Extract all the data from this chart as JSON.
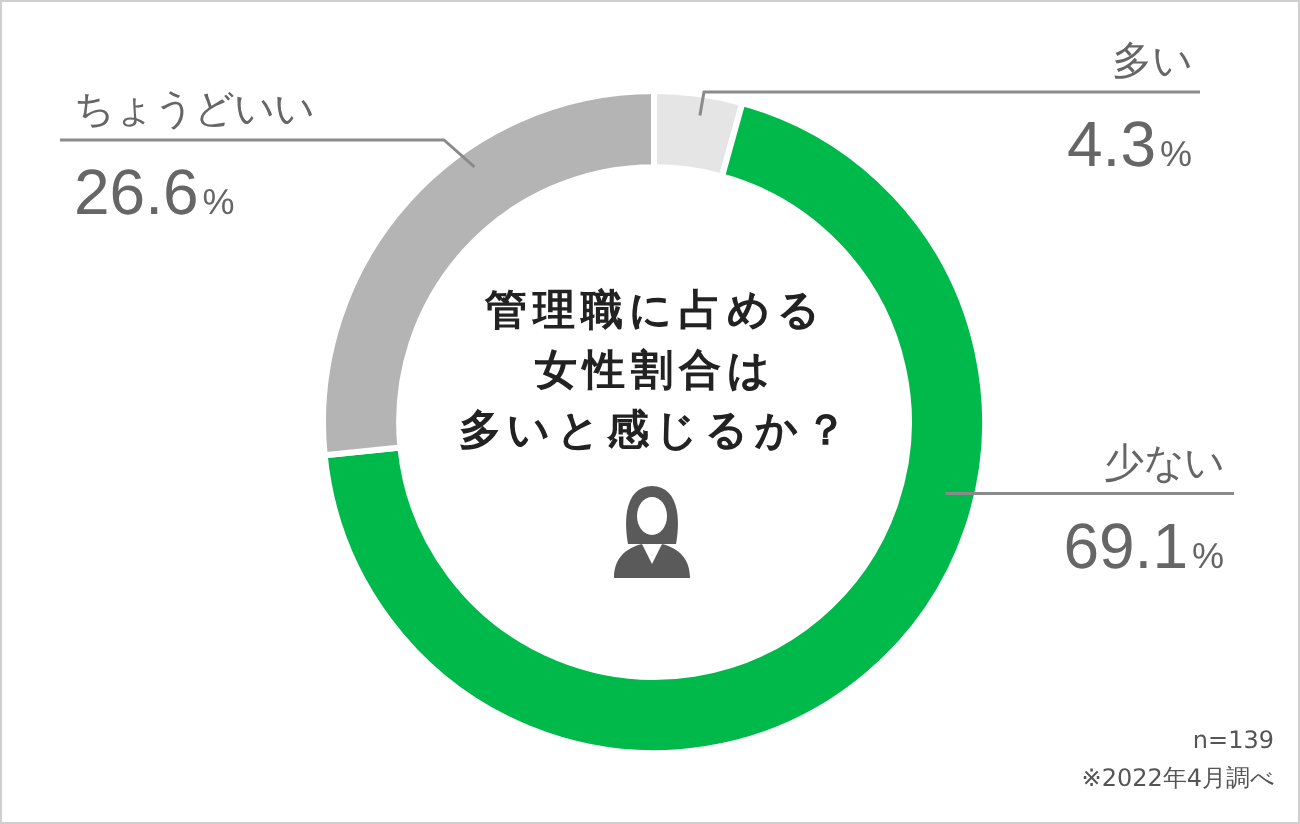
{
  "chart_data": {
    "type": "donut",
    "title": "管理職に占める女性割合は多いと感じるか？",
    "categories": [
      "多い",
      "少ない",
      "ちょうどいい"
    ],
    "values": [
      4.3,
      69.1,
      26.6
    ],
    "colors": [
      "#e5e5e5",
      "#00b94b",
      "#b4b4b4"
    ],
    "value_labels": [
      "4.3%",
      "69.1%",
      "26.6%"
    ],
    "annotations": [
      "n=139",
      "※2022年4月調べ"
    ]
  }
}
